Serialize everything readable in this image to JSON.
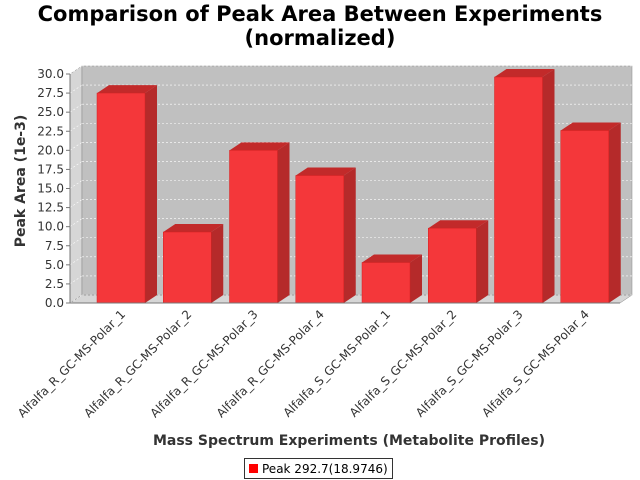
{
  "chart_data": {
    "type": "bar",
    "title_line1": "Comparison of Peak Area Between Experiments",
    "title_line2": "(normalized)",
    "xlabel": "Mass Spectrum Experiments (Metabolite Profiles)",
    "ylabel": "Peak Area (1e-3)",
    "ylim": [
      0,
      30
    ],
    "yticks": [
      "0.0",
      "2.5",
      "5.0",
      "7.5",
      "10.0",
      "12.5",
      "15.0",
      "17.5",
      "20.0",
      "22.5",
      "25.0",
      "27.5",
      "30.0"
    ],
    "categories": [
      "Alfalfa_R_GC-MS-Polar_1",
      "Alfalfa_R_GC-MS-Polar_2",
      "Alfalfa_R_GC-MS-Polar_3",
      "Alfalfa_R_GC-MS-Polar_4",
      "Alfalfa_S_GC-MS-Polar_1",
      "Alfalfa_S_GC-MS-Polar_2",
      "Alfalfa_S_GC-MS-Polar_3",
      "Alfalfa_S_GC-MS-Polar_4"
    ],
    "series": [
      {
        "name": "Peak 292.7(18.9746)",
        "values": [
          27.5,
          9.3,
          20.0,
          16.7,
          5.3,
          9.8,
          29.6,
          22.6
        ]
      }
    ],
    "bar_color": "#ff0000",
    "grid": true,
    "legend_position": "bottom"
  }
}
